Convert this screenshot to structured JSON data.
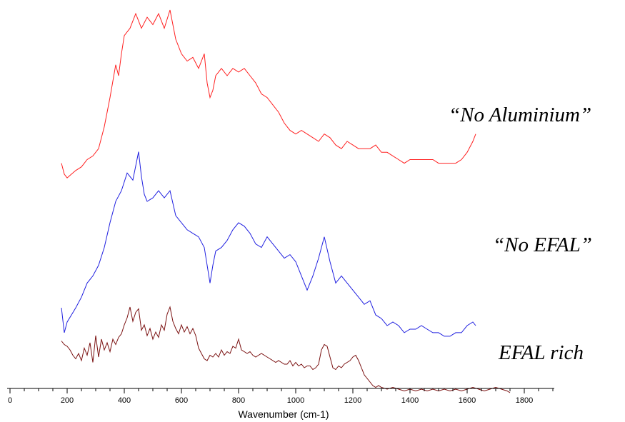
{
  "chart_data": {
    "type": "line",
    "title": "",
    "xlabel": "Wavenumber (cm-1)",
    "ylabel": "",
    "xlim": [
      0,
      1900
    ],
    "ylim": [
      0,
      1
    ],
    "x_ticks": [
      0,
      200,
      400,
      600,
      800,
      1000,
      1200,
      1400,
      1600,
      1800
    ],
    "y_axis_visible": false,
    "grid": false,
    "legend": "none",
    "series": [
      {
        "name": "“No Aluminium”",
        "color": "#ff2020",
        "x": [
          180,
          190,
          200,
          215,
          230,
          250,
          270,
          290,
          310,
          330,
          350,
          370,
          380,
          390,
          400,
          420,
          440,
          460,
          480,
          500,
          520,
          540,
          560,
          580,
          600,
          620,
          640,
          660,
          680,
          690,
          700,
          710,
          720,
          740,
          760,
          780,
          800,
          820,
          840,
          860,
          880,
          900,
          920,
          940,
          960,
          980,
          1000,
          1020,
          1040,
          1060,
          1080,
          1100,
          1120,
          1140,
          1160,
          1180,
          1200,
          1220,
          1240,
          1260,
          1280,
          1300,
          1320,
          1340,
          1360,
          1380,
          1400,
          1420,
          1440,
          1460,
          1480,
          1500,
          1520,
          1540,
          1560,
          1580,
          1600,
          1620,
          1630
        ],
        "values": [
          0.58,
          0.55,
          0.54,
          0.55,
          0.56,
          0.57,
          0.59,
          0.6,
          0.62,
          0.68,
          0.76,
          0.85,
          0.82,
          0.88,
          0.93,
          0.95,
          0.99,
          0.95,
          0.98,
          0.96,
          0.99,
          0.95,
          1.0,
          0.92,
          0.88,
          0.86,
          0.87,
          0.84,
          0.88,
          0.8,
          0.76,
          0.78,
          0.82,
          0.84,
          0.82,
          0.84,
          0.83,
          0.84,
          0.82,
          0.8,
          0.77,
          0.76,
          0.74,
          0.72,
          0.69,
          0.67,
          0.66,
          0.67,
          0.66,
          0.65,
          0.64,
          0.66,
          0.65,
          0.63,
          0.62,
          0.64,
          0.63,
          0.62,
          0.62,
          0.62,
          0.63,
          0.61,
          0.61,
          0.6,
          0.59,
          0.58,
          0.59,
          0.59,
          0.59,
          0.59,
          0.59,
          0.58,
          0.58,
          0.58,
          0.58,
          0.59,
          0.61,
          0.64,
          0.66
        ]
      },
      {
        "name": "“No EFAL”",
        "color": "#2020e0",
        "x": [
          180,
          190,
          200,
          215,
          230,
          250,
          270,
          290,
          310,
          330,
          350,
          370,
          390,
          410,
          430,
          450,
          460,
          470,
          480,
          500,
          520,
          540,
          560,
          580,
          600,
          620,
          640,
          660,
          680,
          700,
          710,
          720,
          740,
          760,
          780,
          800,
          820,
          840,
          860,
          880,
          900,
          920,
          940,
          960,
          980,
          1000,
          1020,
          1040,
          1060,
          1080,
          1100,
          1120,
          1140,
          1160,
          1180,
          1200,
          1220,
          1240,
          1260,
          1280,
          1300,
          1320,
          1340,
          1360,
          1380,
          1400,
          1420,
          1440,
          1460,
          1480,
          1500,
          1520,
          1540,
          1560,
          1580,
          1600,
          1620,
          1630
        ],
        "values": [
          0.38,
          0.31,
          0.34,
          0.36,
          0.38,
          0.41,
          0.45,
          0.47,
          0.5,
          0.55,
          0.62,
          0.68,
          0.71,
          0.76,
          0.74,
          0.82,
          0.75,
          0.7,
          0.68,
          0.69,
          0.71,
          0.69,
          0.71,
          0.64,
          0.62,
          0.6,
          0.59,
          0.58,
          0.55,
          0.45,
          0.5,
          0.54,
          0.55,
          0.57,
          0.6,
          0.62,
          0.61,
          0.59,
          0.56,
          0.55,
          0.58,
          0.56,
          0.54,
          0.52,
          0.53,
          0.51,
          0.47,
          0.43,
          0.47,
          0.52,
          0.58,
          0.51,
          0.45,
          0.47,
          0.45,
          0.43,
          0.41,
          0.39,
          0.4,
          0.36,
          0.35,
          0.33,
          0.34,
          0.33,
          0.31,
          0.32,
          0.32,
          0.33,
          0.32,
          0.31,
          0.31,
          0.3,
          0.3,
          0.31,
          0.31,
          0.33,
          0.34,
          0.33
        ]
      },
      {
        "name": "EFAL rich",
        "color": "#7a1010",
        "x": [
          180,
          190,
          200,
          210,
          220,
          230,
          240,
          250,
          260,
          270,
          280,
          290,
          300,
          310,
          320,
          330,
          340,
          350,
          360,
          370,
          380,
          390,
          400,
          410,
          420,
          430,
          440,
          450,
          460,
          470,
          480,
          490,
          500,
          510,
          520,
          530,
          540,
          550,
          560,
          570,
          580,
          590,
          600,
          610,
          620,
          630,
          640,
          650,
          660,
          670,
          680,
          690,
          700,
          710,
          720,
          730,
          740,
          750,
          760,
          770,
          780,
          790,
          800,
          810,
          820,
          830,
          840,
          850,
          860,
          870,
          880,
          890,
          900,
          910,
          920,
          930,
          940,
          950,
          960,
          970,
          980,
          990,
          1000,
          1010,
          1020,
          1030,
          1040,
          1050,
          1060,
          1070,
          1080,
          1090,
          1100,
          1110,
          1120,
          1130,
          1140,
          1150,
          1160,
          1170,
          1180,
          1190,
          1200,
          1210,
          1220,
          1230,
          1240,
          1250,
          1260,
          1270,
          1280,
          1290,
          1300,
          1320,
          1340,
          1360,
          1380,
          1400,
          1420,
          1440,
          1460,
          1480,
          1500,
          1520,
          1540,
          1560,
          1580,
          1600,
          1620,
          1640,
          1660,
          1680,
          1700,
          1720,
          1740,
          1750
        ],
        "values": [
          0.29,
          0.27,
          0.26,
          0.24,
          0.21,
          0.19,
          0.22,
          0.18,
          0.25,
          0.21,
          0.28,
          0.17,
          0.32,
          0.2,
          0.3,
          0.24,
          0.28,
          0.23,
          0.3,
          0.27,
          0.31,
          0.33,
          0.38,
          0.42,
          0.48,
          0.4,
          0.45,
          0.47,
          0.35,
          0.38,
          0.32,
          0.36,
          0.3,
          0.34,
          0.31,
          0.38,
          0.35,
          0.44,
          0.48,
          0.4,
          0.36,
          0.33,
          0.38,
          0.34,
          0.37,
          0.33,
          0.36,
          0.32,
          0.25,
          0.22,
          0.19,
          0.18,
          0.21,
          0.2,
          0.22,
          0.2,
          0.24,
          0.21,
          0.23,
          0.22,
          0.26,
          0.25,
          0.3,
          0.24,
          0.23,
          0.22,
          0.23,
          0.21,
          0.2,
          0.21,
          0.22,
          0.21,
          0.2,
          0.19,
          0.18,
          0.17,
          0.18,
          0.17,
          0.16,
          0.16,
          0.18,
          0.15,
          0.17,
          0.15,
          0.16,
          0.14,
          0.15,
          0.15,
          0.13,
          0.14,
          0.16,
          0.24,
          0.27,
          0.26,
          0.2,
          0.14,
          0.13,
          0.15,
          0.14,
          0.16,
          0.17,
          0.18,
          0.2,
          0.21,
          0.18,
          0.14,
          0.1,
          0.08,
          0.06,
          0.04,
          0.03,
          0.04,
          0.03,
          0.02,
          0.03,
          0.02,
          0.01,
          0.02,
          0.01,
          0.02,
          0.01,
          0.02,
          0.01,
          0.02,
          0.01,
          0.02,
          0.01,
          0.02,
          0.03,
          0.02,
          0.01,
          0.02,
          0.03,
          0.02,
          0.01,
          0.0
        ]
      }
    ]
  }
}
